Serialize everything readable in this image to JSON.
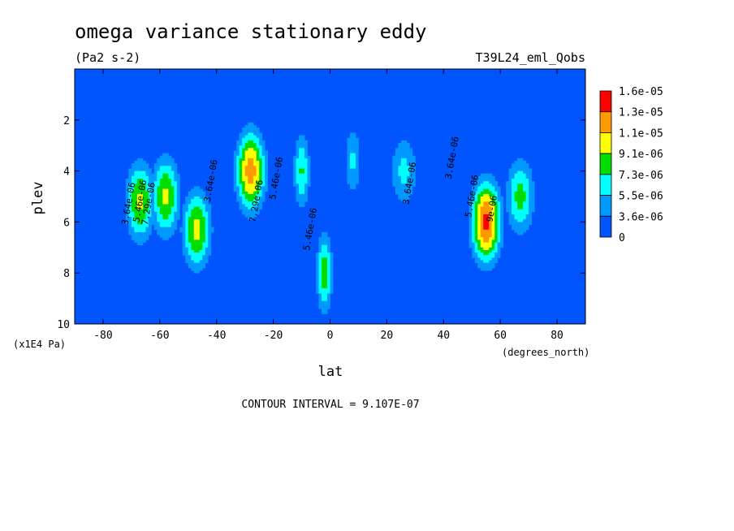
{
  "chart_data": {
    "type": "heatmap",
    "title": "omega variance stationary eddy",
    "units": "(Pa2 s-2)",
    "run_label": "T39L24_eml_Qobs",
    "xlabel": "lat",
    "x_units": "(degrees_north)",
    "ylabel": "plev",
    "y_units": "(x1E4 Pa)",
    "xlim": [
      -90,
      90
    ],
    "ylim": [
      10,
      0
    ],
    "x_ticks": [
      -80,
      -60,
      -40,
      -20,
      0,
      20,
      40,
      60,
      80
    ],
    "x_tick_labels": [
      "-80",
      "-60",
      "-40",
      "-20",
      "0",
      "20",
      "40",
      "60",
      "80"
    ],
    "y_ticks": [
      2,
      4,
      6,
      8,
      10
    ],
    "y_tick_labels": [
      "2",
      "4",
      "6",
      "8",
      "10"
    ],
    "colorbar": {
      "labels": [
        "1.6e-05",
        "1.3e-05",
        "1.1e-05",
        "9.1e-06",
        "7.3e-06",
        "5.5e-06",
        "3.6e-06",
        "0"
      ],
      "colors": [
        "#ff0000",
        "#ff9900",
        "#ffff00",
        "#00dd00",
        "#00ffff",
        "#0099ff",
        "#0055ff"
      ]
    },
    "levels": [
      0,
      3.6e-06,
      5.5e-06,
      7.3e-06,
      9.1e-06,
      1.1e-05,
      1.3e-05,
      1.6e-05
    ],
    "contour_labels": [
      "3.64e-06",
      "5.46e-06",
      "7.29e-06",
      "3.64e-06",
      "7.29e-06",
      "5.46e-06",
      "5.46e-06",
      "3.64e-06",
      "3.64e-06",
      "5.46e-06",
      "9e-06"
    ],
    "maxima": [
      {
        "lat": -67,
        "plev": 5.2,
        "value": 9.5e-06
      },
      {
        "lat": -58,
        "plev": 5.0,
        "value": 9.5e-06
      },
      {
        "lat": -47,
        "plev": 6.3,
        "value": 9.8e-06
      },
      {
        "lat": -28,
        "plev": 4.0,
        "value": 1.2e-05
      },
      {
        "lat": -10,
        "plev": 4.0,
        "value": 7.5e-06
      },
      {
        "lat": -2,
        "plev": 8.0,
        "value": 8.5e-06
      },
      {
        "lat": 8,
        "plev": 3.6,
        "value": 5.8e-06
      },
      {
        "lat": 26,
        "plev": 4.0,
        "value": 6e-06
      },
      {
        "lat": 55,
        "plev": 6.0,
        "value": 1.35e-05
      },
      {
        "lat": 67,
        "plev": 5.0,
        "value": 8e-06
      }
    ],
    "footer": "CONTOUR INTERVAL = 9.107E-07",
    "grid": false
  }
}
